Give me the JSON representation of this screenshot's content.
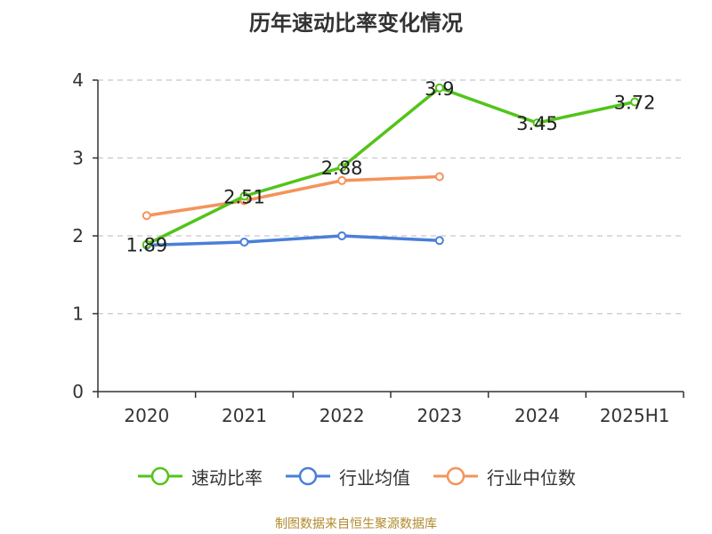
{
  "title": "历年速动比率变化情况",
  "source": "制图数据来自恒生聚源数据库",
  "chart_data": {
    "type": "line",
    "title": "历年速动比率变化情况",
    "categories": [
      "2020",
      "2021",
      "2022",
      "2023",
      "2024",
      "2025H1"
    ],
    "ylim": [
      0,
      4
    ],
    "yticks": [
      0,
      1,
      2,
      3,
      4
    ],
    "grid": true,
    "legend_position": "bottom",
    "series": [
      {
        "name": "速动比率",
        "color": "#52c41a",
        "values": [
          1.89,
          2.51,
          2.88,
          3.9,
          3.45,
          3.72
        ],
        "labels": [
          "1.89",
          "2.51",
          "2.88",
          "3.9",
          "3.45",
          "3.72"
        ]
      },
      {
        "name": "行业均值",
        "color": "#4a7fd8",
        "values": [
          1.88,
          1.92,
          2.0,
          1.94,
          null,
          null
        ]
      },
      {
        "name": "行业中位数",
        "color": "#f5935a",
        "values": [
          2.26,
          2.45,
          2.71,
          2.76,
          null,
          null
        ]
      }
    ]
  }
}
